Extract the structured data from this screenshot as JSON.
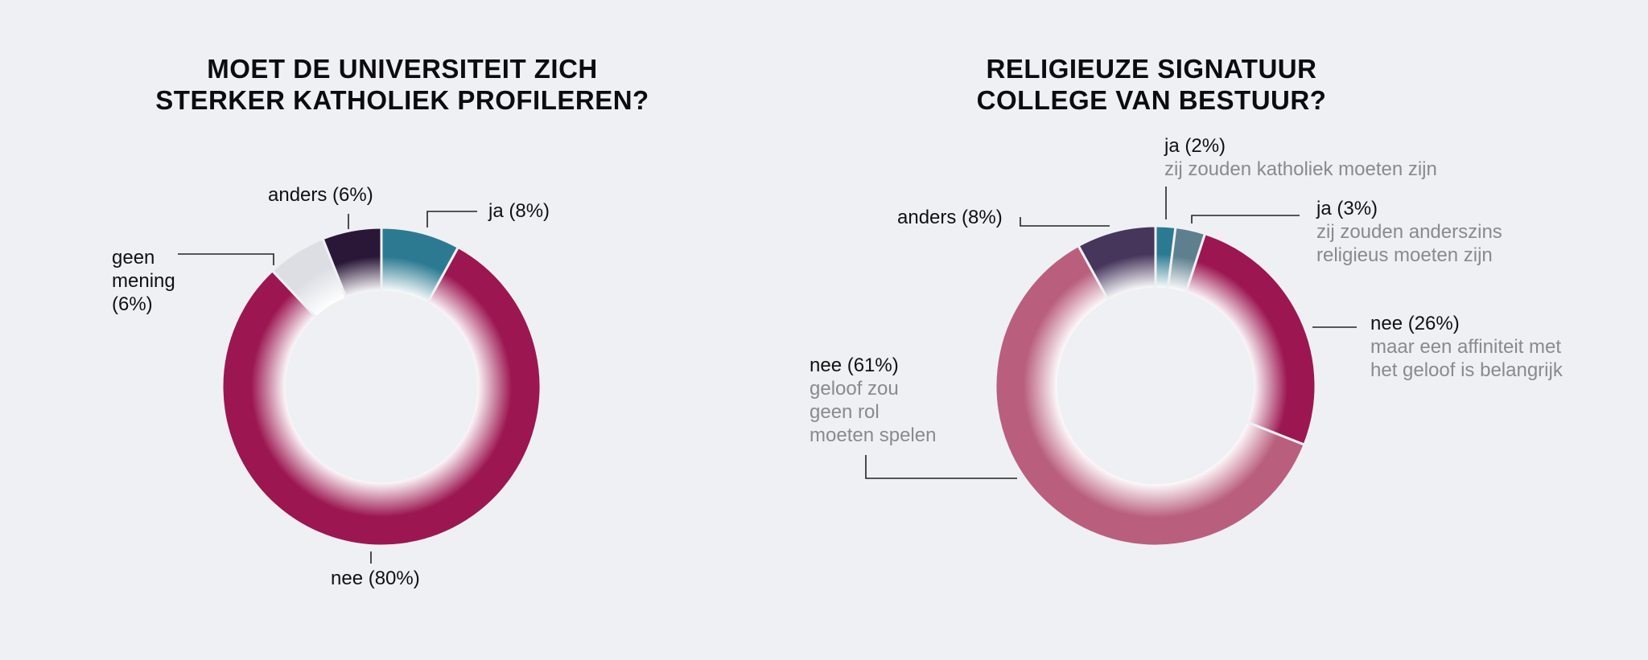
{
  "chart_data": [
    {
      "type": "pie",
      "title_lines": [
        "MOET DE UNIVERSITEIT ZICH",
        "STERKER KATHOLIEK PROFILEREN?"
      ],
      "slices": [
        {
          "key": "ja",
          "label": "ja (8%)",
          "value": 8,
          "color": "#2c7a92"
        },
        {
          "key": "nee",
          "label": "nee (80%)",
          "value": 80,
          "color": "#9c1751"
        },
        {
          "key": "geen",
          "label_lines": [
            "geen",
            "mening",
            "(6%)"
          ],
          "value": 6,
          "color": "#dcdee4"
        },
        {
          "key": "anders",
          "label": "anders (6%)",
          "value": 6,
          "color": "#2a1738"
        }
      ]
    },
    {
      "type": "pie",
      "title_lines": [
        "RELIGIEUZE SIGNATUUR",
        "COLLEGE VAN BESTUUR?"
      ],
      "slices": [
        {
          "key": "ja-katholiek",
          "label": "ja (2%)",
          "sublabel": "zij zouden katholiek moeten zijn",
          "value": 2,
          "color": "#2c7a92"
        },
        {
          "key": "ja-religieus",
          "label": "ja (3%)",
          "sublabel_lines": [
            "zij zouden anderszins",
            "religieus moeten zijn"
          ],
          "value": 3,
          "color": "#5e7f8e"
        },
        {
          "key": "nee-affiniteit",
          "label": "nee (26%)",
          "sublabel_lines": [
            "maar een affiniteit met",
            "het geloof is belangrijk"
          ],
          "value": 26,
          "color": "#9c1751"
        },
        {
          "key": "nee-geen-rol",
          "label": "nee (61%)",
          "sublabel_lines": [
            "geloof zou",
            "geen rol",
            "moeten spelen"
          ],
          "value": 61,
          "color": "#b95f7d"
        },
        {
          "key": "anders",
          "label": "anders (8%)",
          "value": 8,
          "color": "#46365c"
        }
      ]
    }
  ]
}
